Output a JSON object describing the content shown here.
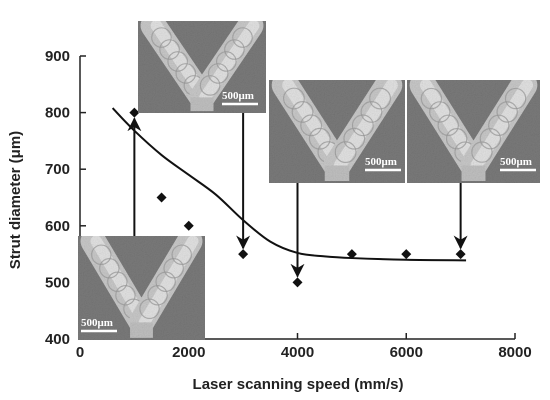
{
  "chart_data": {
    "type": "scatter",
    "xlabel": "Laser scanning speed (mm/s)",
    "ylabel": "Strut diameter (μm)",
    "xlim": [
      0,
      8000
    ],
    "ylim": [
      400,
      900
    ],
    "xticks": [
      0,
      2000,
      4000,
      6000,
      8000
    ],
    "yticks": [
      400,
      500,
      600,
      700,
      800,
      900
    ],
    "grid": false,
    "series": [
      {
        "marker": "diamond",
        "color": "#111111",
        "points": [
          {
            "x": 1000,
            "y": 800
          },
          {
            "x": 1500,
            "y": 650
          },
          {
            "x": 2000,
            "y": 600
          },
          {
            "x": 3000,
            "y": 550
          },
          {
            "x": 4000,
            "y": 500
          },
          {
            "x": 5000,
            "y": 550
          },
          {
            "x": 6000,
            "y": 550
          },
          {
            "x": 7000,
            "y": 550
          }
        ]
      }
    ],
    "trend_curve": {
      "type": "exponential-decay-fit",
      "color": "#111111",
      "points": [
        {
          "x": 600,
          "y": 808
        },
        {
          "x": 1000,
          "y": 768
        },
        {
          "x": 1500,
          "y": 725
        },
        {
          "x": 2000,
          "y": 690
        },
        {
          "x": 2500,
          "y": 655
        },
        {
          "x": 3000,
          "y": 610
        },
        {
          "x": 3500,
          "y": 572
        },
        {
          "x": 4000,
          "y": 552
        },
        {
          "x": 4500,
          "y": 546
        },
        {
          "x": 5000,
          "y": 543
        },
        {
          "x": 6000,
          "y": 540
        },
        {
          "x": 7100,
          "y": 539
        }
      ]
    },
    "insets": [
      {
        "name": "sem-micrograph-1000",
        "points_to": {
          "x": 1000,
          "y": 800
        },
        "scale_label": "500μm"
      },
      {
        "name": "sem-micrograph-3000",
        "points_to": {
          "x": 3000,
          "y": 550
        },
        "scale_label": "500μm"
      },
      {
        "name": "sem-micrograph-4000",
        "points_to": {
          "x": 4000,
          "y": 500
        },
        "scale_label": "500μm"
      },
      {
        "name": "sem-micrograph-7000",
        "points_to": {
          "x": 7000,
          "y": 550
        },
        "scale_label": "500μm"
      }
    ]
  }
}
